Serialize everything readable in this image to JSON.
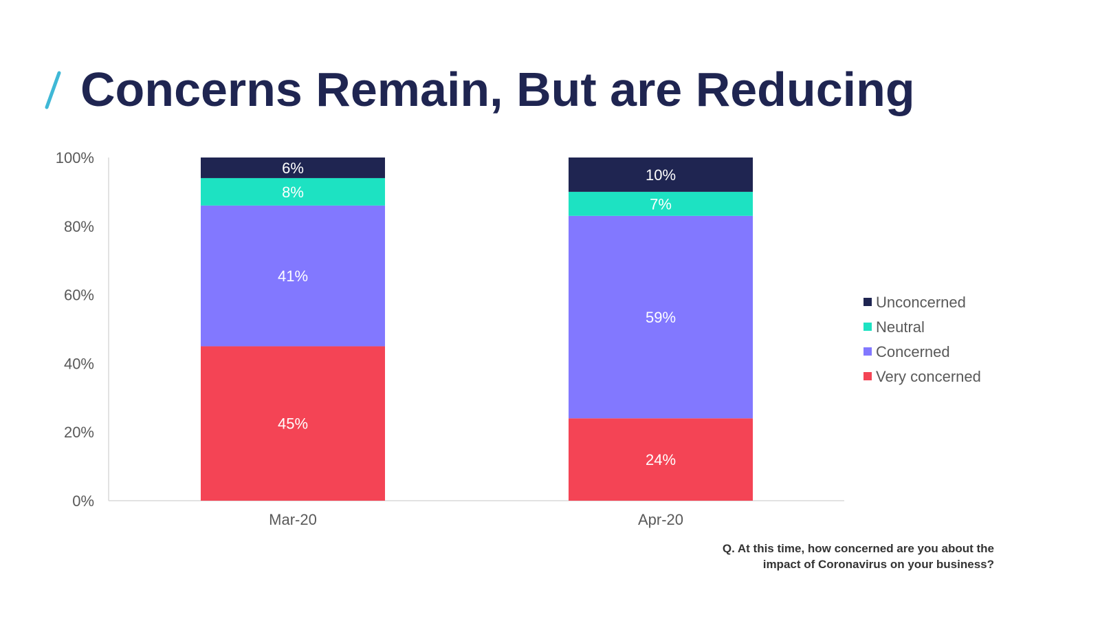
{
  "title": "Concerns Remain, But are Reducing",
  "footnote": {
    "line1": "Q. At this time, how concerned are you about the",
    "line2": "impact of Coronavirus on your business?"
  },
  "colors": {
    "title": "#1f2551",
    "slash": "#3fb8d6"
  },
  "chart_data": {
    "type": "bar",
    "stacked": true,
    "title": "",
    "xlabel": "",
    "ylabel": "",
    "ylim": [
      0,
      100
    ],
    "yticks": [
      "0%",
      "20%",
      "40%",
      "60%",
      "80%",
      "100%"
    ],
    "categories": [
      "Mar-20",
      "Apr-20"
    ],
    "legend_position": "right",
    "series": [
      {
        "name": "Very concerned",
        "color": "#f44455",
        "values": [
          45,
          24
        ],
        "labels": [
          "45%",
          "24%"
        ]
      },
      {
        "name": "Concerned",
        "color": "#8278ff",
        "values": [
          41,
          59
        ],
        "labels": [
          "41%",
          "59%"
        ]
      },
      {
        "name": "Neutral",
        "color": "#1de2c2",
        "values": [
          8,
          7
        ],
        "labels": [
          "8%",
          "7%"
        ]
      },
      {
        "name": "Unconcerned",
        "color": "#1f2551",
        "values": [
          6,
          10
        ],
        "labels": [
          "6%",
          "10%"
        ]
      }
    ],
    "legend_order": [
      "Unconcerned",
      "Neutral",
      "Concerned",
      "Very concerned"
    ]
  }
}
